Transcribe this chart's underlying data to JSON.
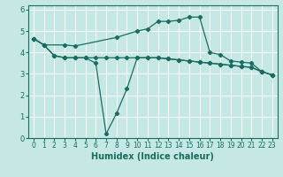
{
  "xlabel": "Humidex (Indice chaleur)",
  "bg_color": "#c5e8e5",
  "grid_color": "#ffffff",
  "line_color": "#1a6b60",
  "xlim": [
    -0.5,
    23.5
  ],
  "ylim": [
    0,
    6.2
  ],
  "xticks": [
    0,
    1,
    2,
    3,
    4,
    5,
    6,
    7,
    8,
    9,
    10,
    11,
    12,
    13,
    14,
    15,
    16,
    17,
    18,
    19,
    20,
    21,
    22,
    23
  ],
  "yticks": [
    0,
    1,
    2,
    3,
    4,
    5,
    6
  ],
  "line_top_x": [
    0,
    1,
    3,
    4,
    8,
    10,
    11,
    12,
    13,
    14,
    15,
    16,
    17,
    18,
    19,
    20,
    21,
    22,
    23
  ],
  "line_top_y": [
    4.65,
    4.35,
    4.35,
    4.3,
    4.7,
    5.0,
    5.1,
    5.45,
    5.45,
    5.5,
    5.65,
    5.65,
    4.0,
    3.9,
    3.6,
    3.55,
    3.5,
    3.1,
    2.95
  ],
  "line_mid_x": [
    0,
    1,
    2,
    3,
    4,
    5,
    6,
    7,
    8,
    9,
    10,
    11,
    12,
    13,
    14,
    15,
    16,
    17,
    18,
    19,
    20,
    21,
    22,
    23
  ],
  "line_mid_y": [
    4.65,
    4.35,
    3.85,
    3.75,
    3.75,
    3.75,
    3.75,
    3.75,
    3.75,
    3.75,
    3.75,
    3.75,
    3.75,
    3.7,
    3.65,
    3.6,
    3.55,
    3.5,
    3.45,
    3.4,
    3.35,
    3.3,
    3.1,
    2.95
  ],
  "line_low_x": [
    0,
    1,
    2,
    3,
    4,
    5,
    6,
    7,
    8,
    9,
    10,
    11,
    12,
    13,
    14,
    15,
    16,
    17,
    18,
    19,
    20,
    21,
    22,
    23
  ],
  "line_low_y": [
    4.65,
    4.35,
    3.85,
    3.75,
    3.75,
    3.75,
    3.5,
    0.2,
    1.15,
    2.3,
    3.75,
    3.75,
    3.75,
    3.7,
    3.65,
    3.6,
    3.55,
    3.5,
    3.45,
    3.4,
    3.35,
    3.3,
    3.1,
    2.95
  ]
}
